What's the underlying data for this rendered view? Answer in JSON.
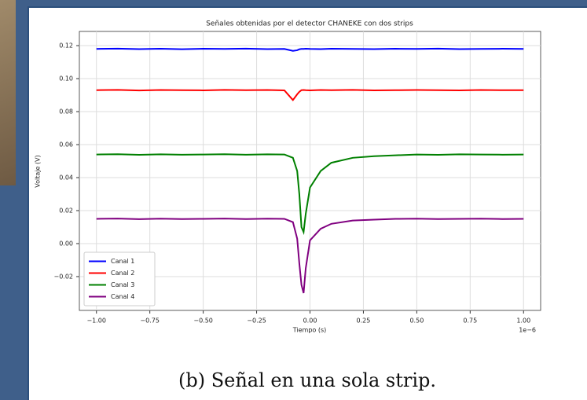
{
  "chart_data": {
    "type": "line",
    "title": "Señales obtenidas por el detector CHANEKE con dos strips",
    "x_label": "Tiempo (s)",
    "y_label": "Voltaje (V)",
    "x_offset_label": "1e−6",
    "x": [
      -1.0,
      -0.9,
      -0.8,
      -0.7,
      -0.6,
      -0.5,
      -0.4,
      -0.3,
      -0.2,
      -0.12,
      -0.08,
      -0.06,
      -0.05,
      -0.04,
      -0.03,
      -0.02,
      0.0,
      0.05,
      0.1,
      0.2,
      0.3,
      0.4,
      0.5,
      0.6,
      0.7,
      0.8,
      0.9,
      1.0
    ],
    "series": [
      {
        "name": "Canal 1",
        "color": "#0000ff",
        "values": [
          0.118,
          0.1182,
          0.1179,
          0.1181,
          0.1178,
          0.1181,
          0.118,
          0.1182,
          0.1179,
          0.118,
          0.1168,
          0.1172,
          0.1178,
          0.118,
          0.118,
          0.1181,
          0.118,
          0.1179,
          0.1181,
          0.118,
          0.1179,
          0.1181,
          0.118,
          0.1182,
          0.1179,
          0.118,
          0.1181,
          0.118
        ]
      },
      {
        "name": "Canal 2",
        "color": "#ff0000",
        "values": [
          0.093,
          0.0932,
          0.0928,
          0.0931,
          0.093,
          0.0929,
          0.0932,
          0.093,
          0.0931,
          0.0929,
          0.087,
          0.0905,
          0.092,
          0.093,
          0.0931,
          0.093,
          0.0929,
          0.0931,
          0.093,
          0.0932,
          0.0929,
          0.093,
          0.0931,
          0.093,
          0.0929,
          0.0931,
          0.093,
          0.093
        ]
      },
      {
        "name": "Canal 3",
        "color": "#008000",
        "values": [
          0.054,
          0.0542,
          0.0538,
          0.0541,
          0.0539,
          0.054,
          0.0542,
          0.0539,
          0.0541,
          0.054,
          0.052,
          0.044,
          0.03,
          0.01,
          0.007,
          0.018,
          0.034,
          0.044,
          0.049,
          0.052,
          0.053,
          0.0535,
          0.054,
          0.0538,
          0.0541,
          0.054,
          0.0539,
          0.054
        ]
      },
      {
        "name": "Canal 4",
        "color": "#800080",
        "values": [
          0.015,
          0.0152,
          0.0148,
          0.0151,
          0.0149,
          0.015,
          0.0152,
          0.0149,
          0.0151,
          0.015,
          0.013,
          0.003,
          -0.012,
          -0.025,
          -0.03,
          -0.015,
          0.002,
          0.009,
          0.012,
          0.014,
          0.0145,
          0.015,
          0.0151,
          0.0149,
          0.015,
          0.0151,
          0.0149,
          0.015
        ]
      }
    ],
    "xlim": [
      -1.08,
      1.08
    ],
    "ylim": [
      -0.0405,
      0.1286
    ],
    "xticks": [
      {
        "value": -1.0,
        "label": "−1.00"
      },
      {
        "value": -0.75,
        "label": "−0.75"
      },
      {
        "value": -0.5,
        "label": "−0.50"
      },
      {
        "value": -0.25,
        "label": "−0.25"
      },
      {
        "value": 0,
        "label": "0.00"
      },
      {
        "value": 0.25,
        "label": "0.25"
      },
      {
        "value": 0.5,
        "label": "0.50"
      },
      {
        "value": 0.75,
        "label": "0.75"
      },
      {
        "value": 1.0,
        "label": "1.00"
      }
    ],
    "yticks": [
      {
        "value": -0.02,
        "label": "−0.02"
      },
      {
        "value": 0,
        "label": "0.00"
      },
      {
        "value": 0.02,
        "label": "0.02"
      },
      {
        "value": 0.04,
        "label": "0.04"
      },
      {
        "value": 0.06,
        "label": "0.06"
      },
      {
        "value": 0.08,
        "label": "0.08"
      },
      {
        "value": 0.1,
        "label": "0.10"
      },
      {
        "value": 0.12,
        "label": "0.12"
      }
    ],
    "grid": true,
    "legend": "lower left"
  },
  "caption": "(b) Señal en una sola strip."
}
